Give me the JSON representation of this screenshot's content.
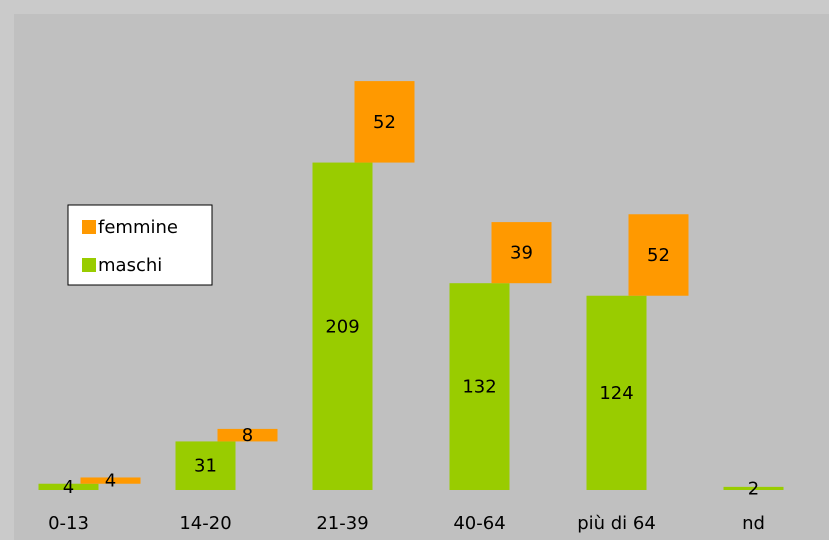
{
  "chart_data": {
    "type": "stacked_offset_bar",
    "categories": [
      "0-13",
      "14-20",
      "21-39",
      "40-64",
      "più di 64",
      "nd"
    ],
    "series": [
      {
        "name": "maschi",
        "color": "#99cc00",
        "values": [
          4,
          31,
          209,
          132,
          124,
          2
        ]
      },
      {
        "name": "femmine",
        "color": "#ff9900",
        "values": [
          4,
          8,
          52,
          39,
          52,
          null
        ]
      }
    ],
    "ylim": [
      0,
      300
    ],
    "legend": "left"
  }
}
